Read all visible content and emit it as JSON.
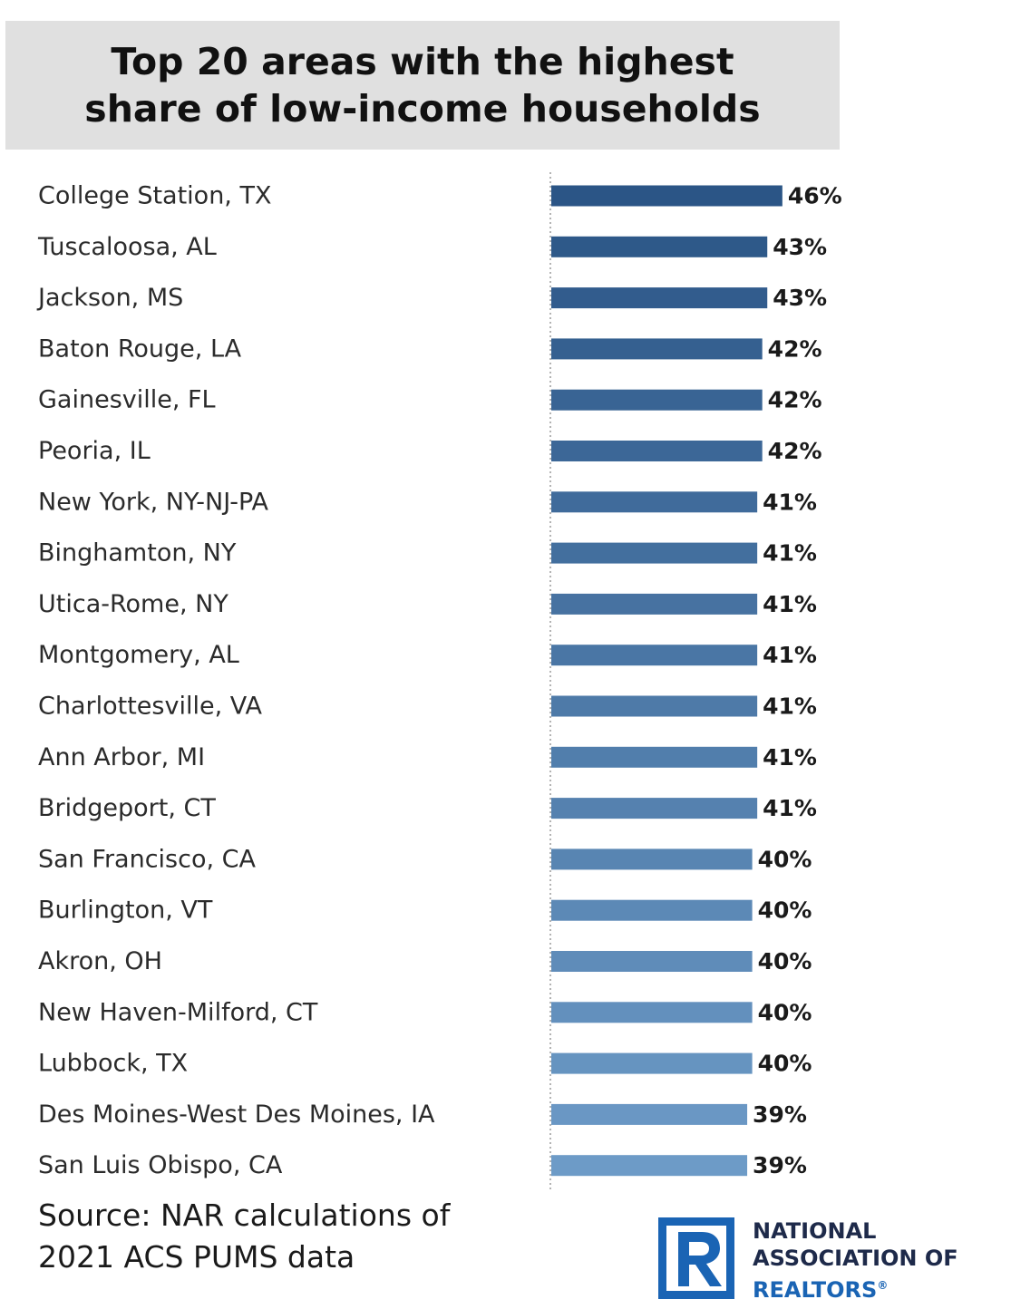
{
  "chart_data": {
    "type": "bar",
    "orientation": "horizontal",
    "title": [
      "Top 20 areas with the highest",
      "share of low-income households"
    ],
    "categories": [
      "College Station, TX",
      "Tuscaloosa, AL",
      "Jackson, MS",
      "Baton Rouge, LA",
      "Gainesville, FL",
      "Peoria, IL",
      "New York, NY-NJ-PA",
      "Binghamton, NY",
      "Utica-Rome, NY",
      "Montgomery, AL",
      "Charlottesville, VA",
      "Ann Arbor, MI",
      "Bridgeport, CT",
      "San Francisco, CA",
      "Burlington, VT",
      "Akron, OH",
      "New Haven-Milford, CT",
      "Lubbock, TX",
      "Des Moines-West Des Moines, IA",
      "San Luis Obispo, CA"
    ],
    "values": [
      46,
      43,
      43,
      42,
      42,
      42,
      41,
      41,
      41,
      41,
      41,
      41,
      41,
      40,
      40,
      40,
      40,
      40,
      39,
      39
    ],
    "value_labels": [
      "46%",
      "43%",
      "43%",
      "42%",
      "42%",
      "42%",
      "41%",
      "41%",
      "41%",
      "41%",
      "41%",
      "41%",
      "41%",
      "40%",
      "40%",
      "40%",
      "40%",
      "40%",
      "39%",
      "39%"
    ],
    "unit": "%",
    "bar_color_start": "#2b5586",
    "bar_color_end": "#6d9bc7",
    "grid": false,
    "legend": "none"
  },
  "source": {
    "line1": "Source: NAR calculations of",
    "line2": "2021 ACS PUMS data"
  },
  "logo": {
    "line1": "NATIONAL",
    "line2": "ASSOCIATION OF",
    "line3": "REALTORS",
    "mark": "®",
    "color_dark": "#1e2a4a",
    "color_blue": "#1a64b4"
  }
}
